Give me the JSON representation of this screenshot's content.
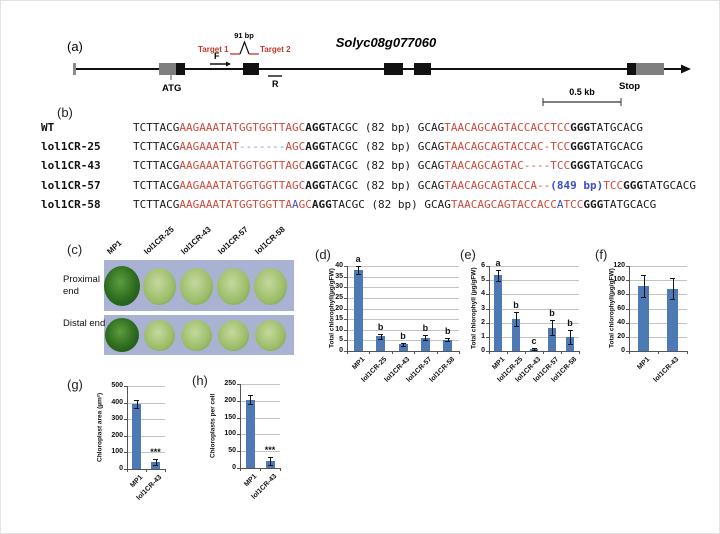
{
  "colors": {
    "sequence_red": "#cf4a3c",
    "sequence_blue": "#3a50c2",
    "sequence_light_blue": "#8494d4",
    "bar_fill": "#4d79b5",
    "photo_background": "#a9b2d3",
    "wild_type_fruit": "#2d6b1e",
    "mutant_fruit": "#9cbd69"
  },
  "panel_a": {
    "label": "(a)",
    "gene_title": "Solyc08g077060",
    "amplicon_size": "91 bp",
    "target1": "Target 1",
    "target2": "Target 2",
    "forward_primer": "F",
    "reverse_primer": "R",
    "start_codon": "ATG",
    "stop_codon": "Stop",
    "scale_bar": "0.5 kb"
  },
  "panel_b": {
    "label": "(b)",
    "rows": [
      {
        "name": "WT",
        "segments": [
          [
            "TCTTACG",
            "k"
          ],
          [
            "AAGAAATATGGTGGTTAGC",
            "r"
          ],
          [
            "AGG",
            "kb"
          ],
          [
            "TACGC (82 bp) GCAG",
            "k"
          ],
          [
            "TAACAGCAGTACCACCTCC",
            "r"
          ],
          [
            "GGG",
            "kb"
          ],
          [
            "TATGCACG",
            "k"
          ]
        ]
      },
      {
        "name": "lol1CR-25",
        "segments": [
          [
            "TCTTACG",
            "k"
          ],
          [
            "AAGAAATAT",
            "r"
          ],
          [
            "-------",
            "lb"
          ],
          [
            "AGC",
            "r"
          ],
          [
            "AGG",
            "kb"
          ],
          [
            "TACGC (82 bp) GCAG",
            "k"
          ],
          [
            "TAACAGCAGTACCAC-TCC",
            "r"
          ],
          [
            "GGG",
            "kb"
          ],
          [
            "TATGCACG",
            "k"
          ]
        ]
      },
      {
        "name": "lol1CR-43",
        "segments": [
          [
            "TCTTACG",
            "k"
          ],
          [
            "AAGAAATATGGTGGTTAGC",
            "r"
          ],
          [
            "AGG",
            "kb"
          ],
          [
            "TACGC (82 bp) GCAG",
            "k"
          ],
          [
            "TAACAGCAGTAC----TCC",
            "r"
          ],
          [
            "GGG",
            "kb"
          ],
          [
            "TATGCACG",
            "k"
          ]
        ]
      },
      {
        "name": "lol1CR-57",
        "segments": [
          [
            "TCTTACG",
            "k"
          ],
          [
            "AAGAAATATGGTGGTTAGC",
            "r"
          ],
          [
            "AGG",
            "kb"
          ],
          [
            "TACGC (82 bp) GCAG",
            "k"
          ],
          [
            "TAACAGCAGTACCA--",
            "r"
          ],
          [
            "(849 bp)",
            "bb"
          ],
          [
            "TCC",
            "r"
          ],
          [
            "GGG",
            "kb"
          ],
          [
            "TATGCACG",
            "k"
          ]
        ]
      },
      {
        "name": "lol1CR-58",
        "segments": [
          [
            "TCTTACG",
            "k"
          ],
          [
            "AAGAAATATGGTGGTTA",
            "r"
          ],
          [
            "A",
            "b"
          ],
          [
            "GC",
            "r"
          ],
          [
            "AGG",
            "kb"
          ],
          [
            "TACGC (82 bp) GCAG",
            "k"
          ],
          [
            "TAACAGCAGTACCACC",
            "r"
          ],
          [
            "A",
            "b"
          ],
          [
            "TCC",
            "r"
          ],
          [
            "GGG",
            "kb"
          ],
          [
            "TATGCACG",
            "k"
          ]
        ]
      }
    ]
  },
  "panel_c": {
    "label": "(c)",
    "row_labels": [
      "Proximal end",
      "Distal end"
    ],
    "column_labels": [
      "MP1",
      "lol1CR-25",
      "lol1CR-43",
      "lol1CR-57",
      "lol1CR-58"
    ]
  },
  "chart_data": [
    {
      "key": "d",
      "panel": "(d)",
      "type": "bar",
      "ylabel": "Total chlorophyll(µg/gFW)",
      "ylim": [
        0,
        40
      ],
      "yticks": [
        0,
        5,
        10,
        15,
        20,
        25,
        30,
        35,
        40
      ],
      "categories": [
        "MP1",
        "lol1CR-25",
        "lol1CR-43",
        "lol1CR-57",
        "lol1CR-58"
      ],
      "values": [
        38,
        7,
        3.2,
        6.3,
        5.3
      ],
      "errors": [
        1.8,
        1.2,
        0.8,
        1.2,
        0.8
      ],
      "sig_labels": [
        "a",
        "b",
        "b",
        "b",
        "b"
      ],
      "grid": true,
      "legend": "none"
    },
    {
      "key": "e",
      "panel": "(e)",
      "type": "bar",
      "ylabel": "Total chlorophyll (µg/gFW)",
      "ylim": [
        0,
        6
      ],
      "yticks": [
        0,
        1,
        2,
        3,
        4,
        5,
        6
      ],
      "categories": [
        "MP1",
        "lol1CR-25",
        "lol1CR-43",
        "lol1CR-57",
        "lol1CR-58"
      ],
      "values": [
        5.35,
        2.25,
        0.12,
        1.65,
        1.0
      ],
      "errors": [
        0.4,
        0.5,
        0.06,
        0.55,
        0.5
      ],
      "sig_labels": [
        "a",
        "b",
        "c",
        "b",
        "b"
      ],
      "grid": true,
      "legend": "none"
    },
    {
      "key": "f",
      "panel": "(f)",
      "type": "bar",
      "ylabel": "Total chlorophyll(µg/gFW)",
      "ylim": [
        0,
        120
      ],
      "yticks": [
        0,
        20,
        40,
        60,
        80,
        100,
        120
      ],
      "categories": [
        "MP1",
        "lol1CR-43"
      ],
      "values": [
        92,
        88
      ],
      "errors": [
        16,
        15
      ],
      "sig_labels": [
        "",
        ""
      ],
      "grid": true,
      "legend": "none"
    },
    {
      "key": "g",
      "panel": "(g)",
      "type": "bar",
      "ylabel": "Chloroplast area (µm²)",
      "ylim": [
        0,
        500
      ],
      "yticks": [
        0,
        100,
        200,
        300,
        400,
        500
      ],
      "categories": [
        "MP1",
        "lol1CR-43"
      ],
      "values": [
        390,
        45
      ],
      "errors": [
        25,
        18
      ],
      "sig_labels": [
        "",
        "***"
      ],
      "grid": true,
      "legend": "none"
    },
    {
      "key": "h",
      "panel": "(h)",
      "type": "bar",
      "ylabel": "Chloroplasts per cell",
      "ylim": [
        0,
        250
      ],
      "yticks": [
        0,
        50,
        100,
        150,
        200,
        250
      ],
      "categories": [
        "MP1",
        "lol1CR-43"
      ],
      "values": [
        203,
        22
      ],
      "errors": [
        13,
        12
      ],
      "sig_labels": [
        "",
        "***"
      ],
      "grid": true,
      "legend": "none"
    }
  ]
}
